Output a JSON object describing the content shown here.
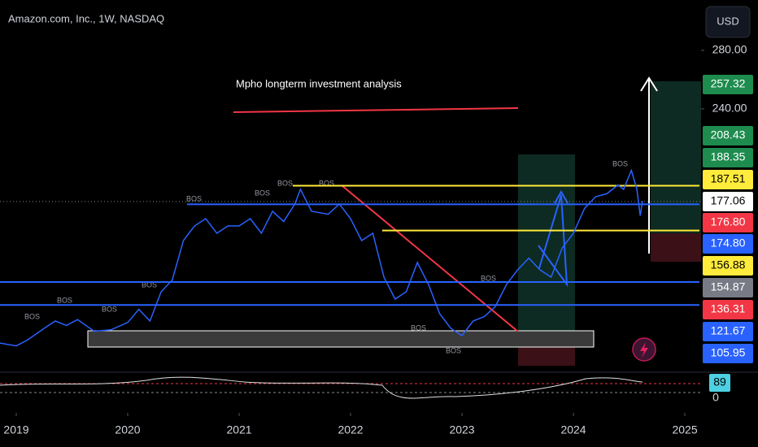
{
  "header": {
    "symbol": "Amazon.com, Inc., 1W, NASDAQ",
    "currency": "USD"
  },
  "annotation": "Mpho longterm investment analysis",
  "bos_label": "BOS",
  "chart_data": {
    "type": "line",
    "xlim": [
      2018.854,
      2025.131
    ],
    "xticks": [
      2019,
      2020,
      2021,
      2022,
      2023,
      2024,
      2025
    ],
    "ylim": [
      60,
      314.4
    ],
    "yticks": [
      {
        "value": 280,
        "label": "280.00"
      },
      {
        "value": 240,
        "label": "240.00"
      }
    ],
    "price": {
      "color": "#2962ff",
      "x": [
        2018.85,
        2019.0,
        2019.1,
        2019.25,
        2019.35,
        2019.45,
        2019.55,
        2019.7,
        2019.85,
        2020.0,
        2020.1,
        2020.2,
        2020.3,
        2020.4,
        2020.5,
        2020.6,
        2020.7,
        2020.8,
        2020.9,
        2021.0,
        2021.1,
        2021.2,
        2021.3,
        2021.4,
        2021.5,
        2021.55,
        2021.65,
        2021.8,
        2021.9,
        2022.0,
        2022.1,
        2022.2,
        2022.3,
        2022.4,
        2022.5,
        2022.6,
        2022.7,
        2022.8,
        2022.9,
        2023.0,
        2023.1,
        2023.2,
        2023.3,
        2023.4,
        2023.5,
        2023.6,
        2023.7,
        2023.8,
        2023.9,
        2024.0,
        2024.1,
        2024.2,
        2024.3,
        2024.4,
        2024.45,
        2024.52,
        2024.57,
        2024.6,
        2024.62
      ],
      "values": [
        80,
        78,
        82,
        90,
        95,
        92,
        96,
        88,
        89,
        94,
        103,
        95,
        115,
        123,
        150,
        160,
        165,
        155,
        160,
        160,
        165,
        155,
        170,
        163,
        175,
        185,
        170,
        168,
        175,
        165,
        150,
        155,
        125,
        110,
        115,
        135,
        120,
        100,
        90,
        85,
        95,
        98,
        105,
        120,
        130,
        138,
        130,
        125,
        145,
        155,
        172,
        180,
        182,
        188,
        185,
        198,
        185,
        167,
        177
      ]
    },
    "levels": [
      {
        "value": 187.51,
        "color": "#ffeb3b"
      },
      {
        "value": 156.88,
        "color": "#ffeb3b"
      },
      {
        "value": 174.8,
        "color": "#2962ff"
      },
      {
        "value": 121.67,
        "color": "#2962ff"
      },
      {
        "value": 105.95,
        "color": "#2962ff"
      }
    ],
    "price_tags": [
      {
        "value": 257.32,
        "label": "257.32",
        "color": "#1e8c4e"
      },
      {
        "value": 208.43,
        "label": "208.43",
        "color": "#1e8c4e"
      },
      {
        "value": 188.35,
        "label": "188.35",
        "color": "#1e8c4e"
      },
      {
        "value": 187.51,
        "label": "187.51",
        "color": "#ffeb3b"
      },
      {
        "value": 177.06,
        "label": "177.06",
        "color": "#ffffff"
      },
      {
        "value": 176.8,
        "label": "176.80",
        "color": "#f23645"
      },
      {
        "value": 174.8,
        "label": "174.80",
        "color": "#2962ff"
      },
      {
        "value": 156.88,
        "label": "156.88",
        "color": "#ffeb3b"
      },
      {
        "value": 154.87,
        "label": "154.87",
        "color": "#787b86"
      },
      {
        "value": 136.31,
        "label": "136.31",
        "color": "#f23645"
      },
      {
        "value": 121.67,
        "label": "121.67",
        "color": "#2962ff"
      },
      {
        "value": 105.95,
        "label": "105.95",
        "color": "#2962ff"
      }
    ],
    "indicator": {
      "value": 89,
      "color": "#4dd0e1",
      "axis_label": 0
    }
  }
}
